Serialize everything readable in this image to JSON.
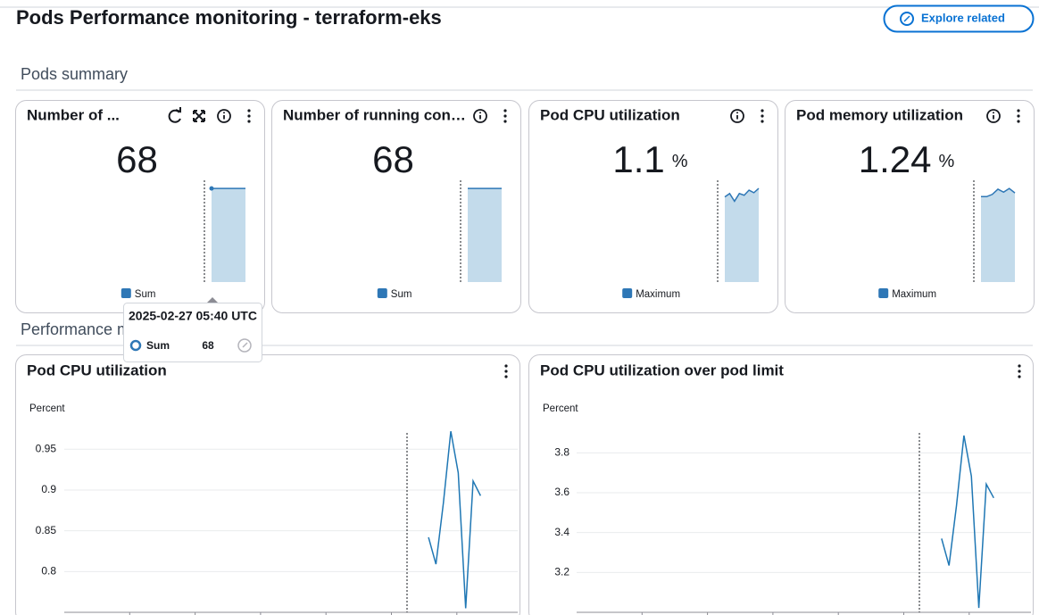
{
  "header": {
    "title": "Pods Performance monitoring - terraform-eks",
    "button": "Explore related"
  },
  "summary": {
    "title": "Pods summary",
    "widgets": [
      {
        "title": "Number of ...",
        "value": 68,
        "legend": "Sum",
        "spark": [
          68,
          68,
          68,
          68,
          68
        ]
      },
      {
        "title": "Number of running con…",
        "value": 68,
        "legend": "Sum",
        "spark": [
          68,
          68,
          68,
          68,
          68
        ]
      },
      {
        "title": "Pod CPU utilization",
        "value": 1.1,
        "unit": "%",
        "legend": "Maximum",
        "spark": [
          1.0,
          1.04,
          0.95,
          1.04,
          1.02,
          1.08,
          1.05,
          1.1
        ]
      },
      {
        "title": "Pod memory utilization",
        "value": 1.24,
        "unit": "%",
        "legend": "Maximum",
        "spark": [
          1.15,
          1.15,
          1.18,
          1.25,
          1.21,
          1.26,
          1.2
        ]
      }
    ]
  },
  "tooltip": {
    "time": "2025-02-27 05:40 UTC",
    "series": "Sum",
    "value": 68
  },
  "performance": {
    "title": "Performance metrics",
    "charts": [
      {
        "type": "line",
        "title": "Pod CPU utilization",
        "ylabel": "Percent",
        "ylim": [
          0.75,
          0.97
        ],
        "yticks": [
          0.8,
          0.85,
          0.9,
          0.95
        ],
        "color": "#1f77b4",
        "values": [
          null,
          null,
          null,
          null,
          null,
          null,
          null,
          null,
          null,
          null,
          null,
          null,
          null,
          null,
          null,
          null,
          null,
          null,
          null,
          null,
          null,
          null,
          null,
          null,
          null,
          null,
          null,
          null,
          null,
          null,
          null,
          null,
          null,
          null,
          null,
          null,
          null,
          null,
          null,
          null,
          null,
          null,
          null,
          null,
          null,
          null,
          null,
          null,
          null,
          0.842,
          0.809,
          0.884,
          0.972,
          0.921,
          0.755,
          0.911,
          0.893,
          null,
          null,
          null,
          null,
          null
        ]
      },
      {
        "type": "line",
        "title": "Pod CPU utilization over pod limit",
        "ylabel": "Percent",
        "ylim": [
          3.0,
          3.9
        ],
        "yticks": [
          3.2,
          3.4,
          3.6,
          3.8
        ],
        "color": "#1f77b4",
        "values": [
          null,
          null,
          null,
          null,
          null,
          null,
          null,
          null,
          null,
          null,
          null,
          null,
          null,
          null,
          null,
          null,
          null,
          null,
          null,
          null,
          null,
          null,
          null,
          null,
          null,
          null,
          null,
          null,
          null,
          null,
          null,
          null,
          null,
          null,
          null,
          null,
          null,
          null,
          null,
          null,
          null,
          null,
          null,
          null,
          null,
          null,
          null,
          null,
          null,
          3.37,
          3.235,
          3.535,
          3.887,
          3.683,
          3.022,
          3.643,
          3.574,
          null,
          null,
          null,
          null,
          null
        ]
      }
    ]
  }
}
